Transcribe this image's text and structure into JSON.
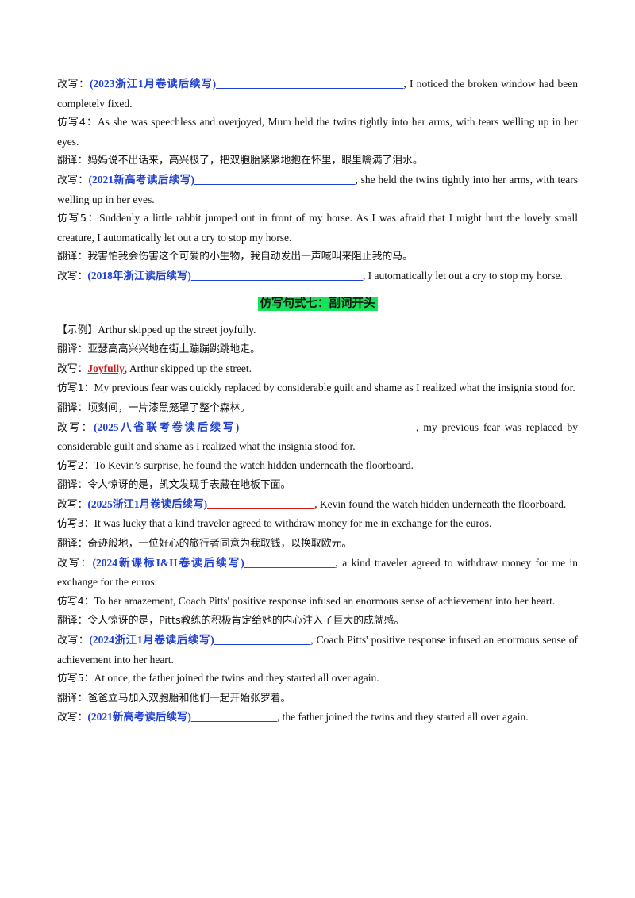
{
  "section6": {
    "rewrite3": {
      "label": "改写：",
      "tag": "(2023浙江1月卷读后续写)",
      "blank": "___________________________________",
      "rest": ", I noticed the broken window had been completely fixed."
    },
    "imitate4": {
      "label": "仿写4：",
      "text": "As she was speechless and overjoyed, Mum held the twins tightly into her arms, with tears welling up in her eyes."
    },
    "translate4": {
      "label": "翻译：",
      "text": "妈妈说不出话来，高兴极了，把双胞胎紧紧地抱在怀里，眼里噙满了泪水。"
    },
    "rewrite4": {
      "label": "改写：",
      "tag": "(2021新高考读后续写)",
      "blank": "______________________________",
      "rest": ", she held the twins tightly into her arms, with tears welling up in her eyes."
    },
    "imitate5": {
      "label": "仿写5：",
      "text": "Suddenly a little rabbit jumped out in front of my horse. As I was afraid that I might hurt the lovely small creature, I automatically let out a cry to stop my horse."
    },
    "translate5": {
      "label": "翻译：",
      "text": "我害怕我会伤害这个可爱的小生物，我自动发出一声喊叫来阻止我的马。"
    },
    "rewrite5": {
      "label": "改写：",
      "tag": "(2018年浙江读后续写)",
      "blank": "________________________________",
      "rest": ", I automatically let out a cry to stop my horse."
    }
  },
  "section7": {
    "heading": "仿写句式七：副词开头",
    "example": {
      "label": "【示例】",
      "text": "Arthur skipped up the street joyfully."
    },
    "example_translate": {
      "label": "翻译：",
      "text": "亚瑟高高兴兴地在街上蹦蹦跳跳地走。"
    },
    "example_rewrite": {
      "label": "改写：",
      "answer": "Joyfully",
      "rest": ", Arthur skipped up the street."
    },
    "imitate1": {
      "label": "仿写1：",
      "text": "My previous fear was quickly replaced by considerable guilt and shame as I realized what the insignia stood for."
    },
    "translate1": {
      "label": "翻译：",
      "text": "顷刻间，一片漆黑笼罩了整个森林。"
    },
    "rewrite1": {
      "label": "改写：",
      "tag": "(2025八省联考卷读后续写)",
      "blank": "_________________________________",
      "rest": ", my previous fear was replaced by considerable guilt and shame as I realized what the insignia stood for."
    },
    "imitate2": {
      "label": "仿写2：",
      "text": "To Kevin’s surprise, he found the watch hidden underneath  the floorboard."
    },
    "translate2": {
      "label": "翻译：",
      "text": "令人惊讶的是，凯文发现手表藏在地板下面。"
    },
    "rewrite2": {
      "label": "改写：",
      "tag": "(2025浙江1月卷读后续写)",
      "blank": "____________________,",
      "rest": " Kevin found the watch hidden underneath the floorboard."
    },
    "imitate3": {
      "label": "仿写3：",
      "text": "It was lucky that  a kind traveler agreed to withdraw money for me in exchange for the euros."
    },
    "translate3": {
      "label": "翻译：",
      "text": "奇迹般地，一位好心的旅行者同意为我取钱，以换取欧元。"
    },
    "rewrite3": {
      "label": "改写：",
      "tag": "(2024新课标I&II卷读后续写)",
      "blank": "_________________,",
      "rest": " a kind traveler agreed to withdraw money for me in exchange for the euros."
    },
    "imitate4": {
      "label": "仿写4：",
      "text": "To her amazement, Coach Pitts' positive response infused an enormous sense of achievement into her heart."
    },
    "translate4": {
      "label": "翻译：",
      "text": "令人惊讶的是，Pitts教练的积极肯定给她的内心注入了巨大的成就感。"
    },
    "rewrite4": {
      "label": "改写：",
      "tag": "(2024浙江1月卷读后续写)",
      "blank": "__________________",
      "rest": ", Coach Pitts' positive response infused an enormous sense of achievement into her heart."
    },
    "imitate5": {
      "label": "仿写5：",
      "text": "At once, the father joined the twins and they started all over again."
    },
    "translate5": {
      "label": "翻译：",
      "text": "爸爸立马加入双胞胎和他们一起开始张罗着。"
    },
    "rewrite5": {
      "label": "改写：",
      "tag": "(2021新高考读后续写)",
      "blank": "________________",
      "rest": ", the father joined the twins and they started all over again."
    }
  }
}
